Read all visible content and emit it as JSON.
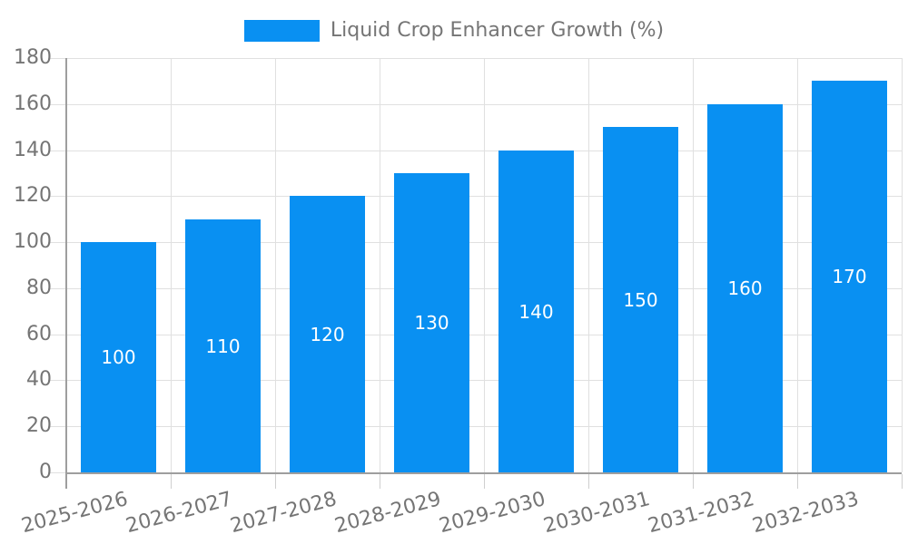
{
  "legend": {
    "label": "Liquid Crop Enhancer Growth (%)"
  },
  "chart_data": {
    "type": "bar",
    "title": "",
    "series_name": "Liquid Crop Enhancer Growth (%)",
    "categories": [
      "2025-2026",
      "2026-2027",
      "2027-2028",
      "2028-2029",
      "2029-2030",
      "2030-2031",
      "2031-2032",
      "2032-2033"
    ],
    "values": [
      100,
      110,
      120,
      130,
      140,
      150,
      160,
      170
    ],
    "data_labels": [
      "100",
      "110",
      "120",
      "130",
      "140",
      "150",
      "160",
      "170"
    ],
    "xlabel": "",
    "ylabel": "",
    "ylim": [
      0,
      180
    ],
    "ytick_step": 20,
    "y_ticks": [
      0,
      20,
      40,
      60,
      80,
      100,
      120,
      140,
      160,
      180
    ],
    "grid": true,
    "legend_position": "top-center",
    "bar_color": "#0990F2",
    "data_label_color": "#FFFFFF",
    "axis_text_color": "#757575",
    "axis_line_color": "#9E9E9E",
    "grid_color": "#E0E0E0",
    "tick_color": "#CFCFCF",
    "background_color": "#FFFFFF"
  }
}
